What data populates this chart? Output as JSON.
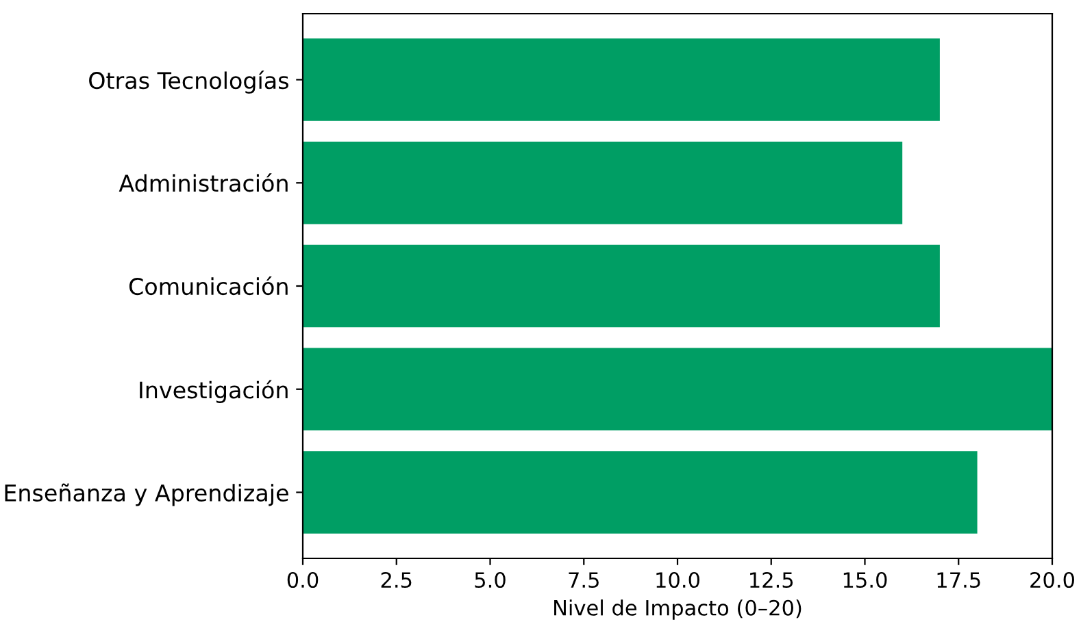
{
  "chart_data": {
    "type": "bar",
    "orientation": "horizontal",
    "xlabel": "Nivel de Impacto (0–20)",
    "categories": [
      "Otras Tecnologías",
      "Administración",
      "Comunicación",
      "Investigación",
      "Enseñanza y Aprendizaje"
    ],
    "values": [
      17,
      16,
      17,
      20,
      18
    ],
    "color": "#009e64",
    "xlim": [
      0,
      20
    ],
    "xticks": [
      {
        "value": 0,
        "label": "0.0"
      },
      2.5,
      {
        "value": 5,
        "label": "5.0"
      },
      7.5,
      {
        "value": 10,
        "label": "10.0"
      },
      12.5,
      {
        "value": 15,
        "label": "15.0"
      },
      17.5,
      {
        "value": 20,
        "label": "20.0"
      }
    ],
    "grid": false
  }
}
